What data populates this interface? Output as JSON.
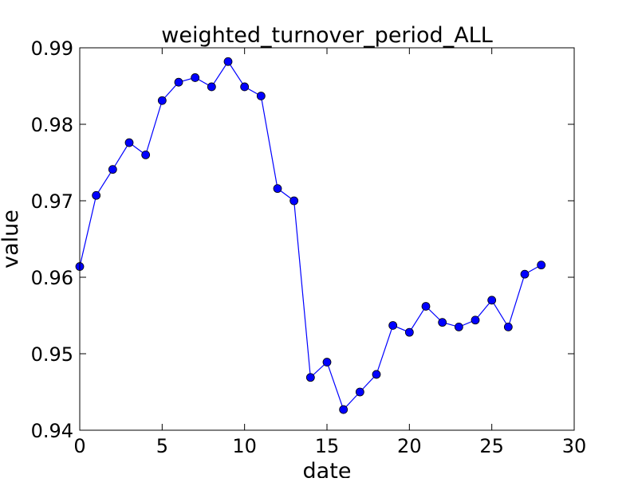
{
  "chart_data": {
    "type": "line",
    "title": "weighted_turnover_period_ALL",
    "xlabel": "date",
    "ylabel": "value",
    "xlim": [
      0,
      30
    ],
    "ylim": [
      0.94,
      0.99
    ],
    "xticks": [
      "0",
      "5",
      "10",
      "15",
      "20",
      "25",
      "30"
    ],
    "yticks": [
      "0.94",
      "0.95",
      "0.96",
      "0.97",
      "0.98",
      "0.99"
    ],
    "grid": false,
    "series": [
      {
        "color": "#0000ff",
        "marker": "circle",
        "x": [
          0,
          1,
          2,
          3,
          4,
          5,
          6,
          7,
          8,
          9,
          10,
          11,
          12,
          13,
          14,
          15,
          16,
          17,
          18,
          19,
          20,
          21,
          22,
          23,
          24,
          25,
          26,
          27,
          28
        ],
        "y": [
          0.9614,
          0.9707,
          0.9741,
          0.9776,
          0.976,
          0.9831,
          0.9855,
          0.9861,
          0.9849,
          0.9882,
          0.9849,
          0.9837,
          0.9716,
          0.97,
          0.9469,
          0.9489,
          0.9427,
          0.945,
          0.9473,
          0.9537,
          0.9528,
          0.9562,
          0.9541,
          0.9535,
          0.9544,
          0.957,
          0.9535,
          0.9604,
          0.9616
        ]
      }
    ]
  }
}
